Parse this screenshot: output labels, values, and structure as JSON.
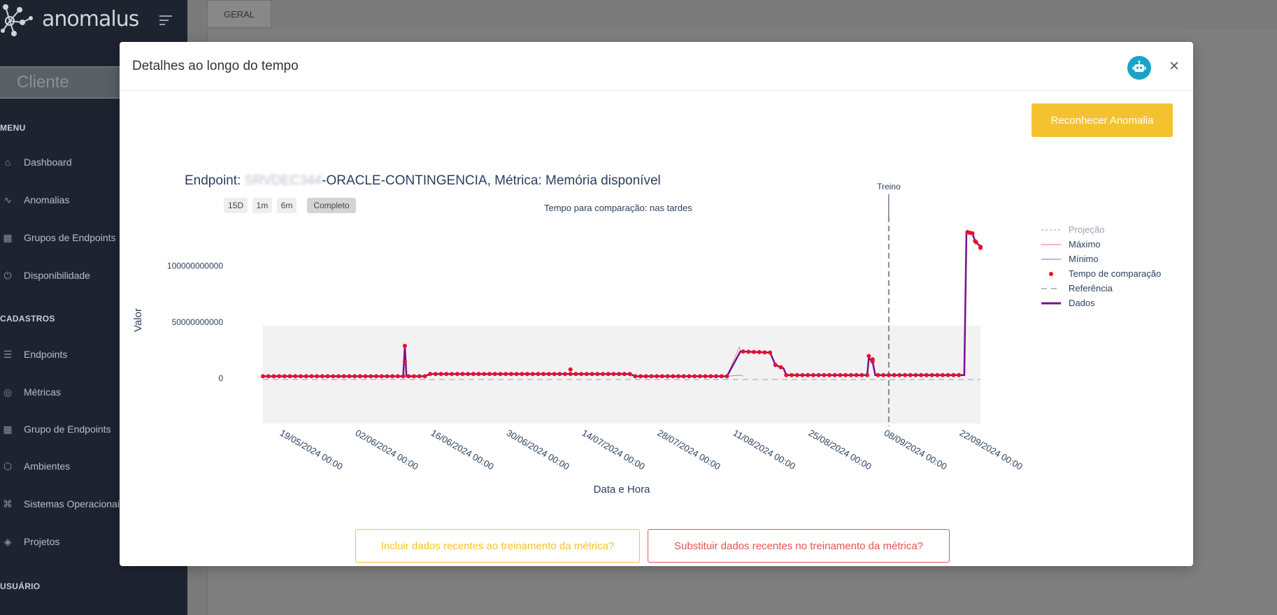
{
  "sidebar": {
    "logo_text": "anomalus",
    "client_placeholder": "Cliente",
    "menu_title": "MENU",
    "menu_items": [
      {
        "label": "Dashboard",
        "icon": "home-icon"
      },
      {
        "label": "Anomalias",
        "icon": "pulse-icon"
      },
      {
        "label": "Grupos de Endpoints",
        "icon": "grid-icon"
      },
      {
        "label": "Disponibilidade",
        "icon": "power-icon"
      }
    ],
    "cadastros_title": "CADASTROS",
    "cadastros_items": [
      {
        "label": "Endpoints",
        "icon": "server-icon"
      },
      {
        "label": "Métricas",
        "icon": "target-icon"
      },
      {
        "label": "Grupo de Endpoints",
        "icon": "grid-icon"
      },
      {
        "label": "Ambientes",
        "icon": "cube-icon"
      },
      {
        "label": "Sistemas Operacionais",
        "icon": "command-icon"
      },
      {
        "label": "Projetos",
        "icon": "layers-icon"
      }
    ],
    "usuario_title": "USUÁRIO"
  },
  "main": {
    "tab_label": "GERAL"
  },
  "modal": {
    "title": "Detalhes ao longo do tempo",
    "close_label": "×",
    "robot_icon": "robot-icon",
    "anomalia_button": "Reconhecer Anomalia",
    "incluir_button": "Incluir dados recentes ao treinamento da métrica?",
    "substituir_button": "Substituir dados recentes no treinamento da métrica?"
  },
  "chart_data": {
    "type": "line",
    "title_prefix": "Endpoint: ",
    "title_redacted": "SRVDEC344",
    "title_suffix": "-ORACLE-CONTINGENCIA, Métrica: Memória disponível",
    "subtitle": "Tempo para comparação: nas tardes",
    "range_buttons": [
      "15D",
      "1m",
      "6m",
      "Completo"
    ],
    "active_range": "Completo",
    "xlabel": "Data e Hora",
    "ylabel": "Valor",
    "x_ticks": [
      "19/05/2024 00:00",
      "02/06/2024 00:00",
      "16/06/2024 00:00",
      "30/06/2024 00:00",
      "14/07/2024 00:00",
      "28/07/2024 00:00",
      "11/08/2024 00:00",
      "25/08/2024 00:00",
      "08/09/2024 00:00",
      "22/09/2024 00:00"
    ],
    "y_ticks": [
      "100000000000",
      "50000000000",
      "0"
    ],
    "y_tick_values": [
      100000000000,
      50000000000,
      0
    ],
    "ylim": [
      -40000000000,
      140000000000
    ],
    "x_range_days": [
      -3,
      130
    ],
    "annotation": "Treino",
    "treino_day": 113,
    "shaded_band": [
      -40000000000,
      47000000000
    ],
    "legend_position": "right",
    "legend": [
      {
        "name": "Projeção",
        "style": "dotted",
        "color": "#b0b0b0",
        "dim": true
      },
      {
        "name": "Máximo",
        "style": "line",
        "color": "#f28b8b"
      },
      {
        "name": "Mínimo",
        "style": "line",
        "color": "#8c8cf2"
      },
      {
        "name": "Tempo de comparação",
        "style": "marker",
        "color": "#e8102a"
      },
      {
        "name": "Referência",
        "style": "dashed",
        "color": "#bbbbbb"
      },
      {
        "name": "Dados",
        "style": "thick",
        "color": "#7b0d8f"
      }
    ],
    "series": [
      {
        "name": "Dados",
        "points": [
          [
            -3,
            2000000000
          ],
          [
            23,
            2000000000
          ],
          [
            23.3,
            29000000000
          ],
          [
            23.6,
            2000000000
          ],
          [
            27,
            2000000000
          ],
          [
            28,
            4000000000
          ],
          [
            65,
            4000000000
          ],
          [
            66,
            2000000000
          ],
          [
            83,
            2000000000
          ],
          [
            85.5,
            24000000000
          ],
          [
            91,
            23000000000
          ],
          [
            92,
            12000000000
          ],
          [
            93.5,
            9000000000
          ],
          [
            94,
            3000000000
          ],
          [
            109,
            3000000000
          ],
          [
            109.3,
            18000000000
          ],
          [
            110,
            15000000000
          ],
          [
            110.5,
            3000000000
          ],
          [
            127,
            3000000000
          ],
          [
            127.4,
            130000000000
          ],
          [
            128.5,
            129000000000
          ],
          [
            129,
            122000000000
          ],
          [
            130,
            117000000000
          ]
        ]
      }
    ],
    "markers_days": [
      -3,
      -2,
      -1,
      0,
      1,
      2,
      3,
      4,
      5,
      6,
      7,
      8,
      9,
      10,
      11,
      12,
      13,
      14,
      15,
      16,
      17,
      18,
      19,
      20,
      21,
      22,
      23,
      24,
      25,
      26,
      27,
      28,
      29,
      30,
      31,
      32,
      33,
      34,
      35,
      36,
      37,
      38,
      39,
      40,
      41,
      42,
      43,
      44,
      45,
      46,
      47,
      48,
      49,
      50,
      51,
      52,
      53,
      54,
      55,
      56,
      57,
      58,
      59,
      60,
      61,
      62,
      63,
      64,
      65,
      66,
      67,
      68,
      69,
      70,
      71,
      72,
      73,
      74,
      75,
      76,
      77,
      78,
      79,
      80,
      81,
      82,
      83,
      86,
      87,
      88,
      89,
      90,
      91,
      92,
      93,
      94,
      95,
      96,
      97,
      98,
      99,
      100,
      101,
      102,
      103,
      104,
      105,
      106,
      107,
      108,
      109,
      110,
      111,
      112,
      113,
      114,
      115,
      116,
      117,
      118,
      119,
      120,
      121,
      122,
      123,
      124,
      125,
      126,
      128,
      129,
      130
    ]
  }
}
